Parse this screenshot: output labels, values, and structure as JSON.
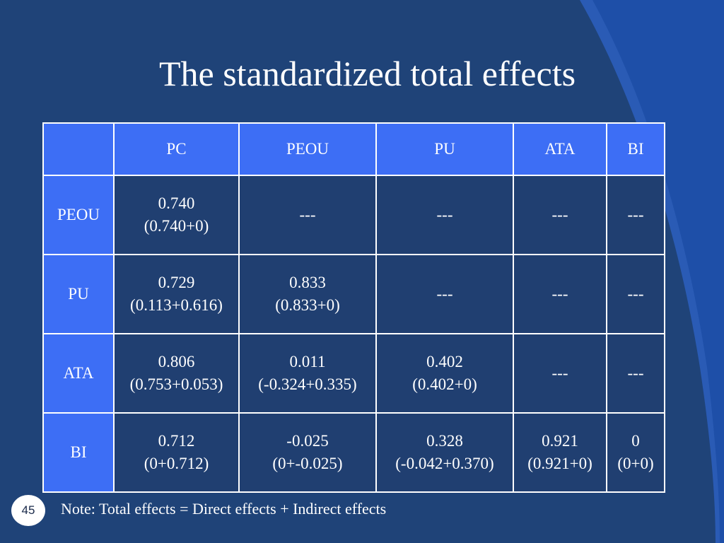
{
  "slide": {
    "title": "The standardized total effects",
    "note": "Note: Total effects = Direct effects + Indirect effects",
    "page_number": "45"
  },
  "colors": {
    "background": "#1f4378",
    "header_cell": "#3d6ef5",
    "accent_arc": "#2d60bd",
    "text": "#ffffff"
  },
  "table": {
    "columns": [
      "",
      "PC",
      "PEOU",
      "PU",
      "ATA",
      "BI"
    ],
    "rows": [
      {
        "label": "PEOU",
        "cells": [
          {
            "value": "0.740",
            "breakdown": "(0.740+0)"
          },
          {
            "value": "---",
            "breakdown": ""
          },
          {
            "value": "---",
            "breakdown": ""
          },
          {
            "value": "---",
            "breakdown": ""
          },
          {
            "value": "---",
            "breakdown": ""
          }
        ]
      },
      {
        "label": "PU",
        "cells": [
          {
            "value": "0.729",
            "breakdown": "(0.113+0.616)"
          },
          {
            "value": "0.833",
            "breakdown": "(0.833+0)"
          },
          {
            "value": "---",
            "breakdown": ""
          },
          {
            "value": "---",
            "breakdown": ""
          },
          {
            "value": "---",
            "breakdown": ""
          }
        ]
      },
      {
        "label": "ATA",
        "cells": [
          {
            "value": "0.806",
            "breakdown": "(0.753+0.053)"
          },
          {
            "value": "0.011",
            "breakdown": "(-0.324+0.335)"
          },
          {
            "value": "0.402",
            "breakdown": "(0.402+0)"
          },
          {
            "value": "---",
            "breakdown": ""
          },
          {
            "value": "---",
            "breakdown": ""
          }
        ]
      },
      {
        "label": "BI",
        "cells": [
          {
            "value": "0.712",
            "breakdown": "(0+0.712)"
          },
          {
            "value": "-0.025",
            "breakdown": "(0+-0.025)"
          },
          {
            "value": "0.328",
            "breakdown": "(-0.042+0.370)"
          },
          {
            "value": "0.921",
            "breakdown": "(0.921+0)"
          },
          {
            "value": "0",
            "breakdown": "(0+0)"
          }
        ]
      }
    ]
  }
}
